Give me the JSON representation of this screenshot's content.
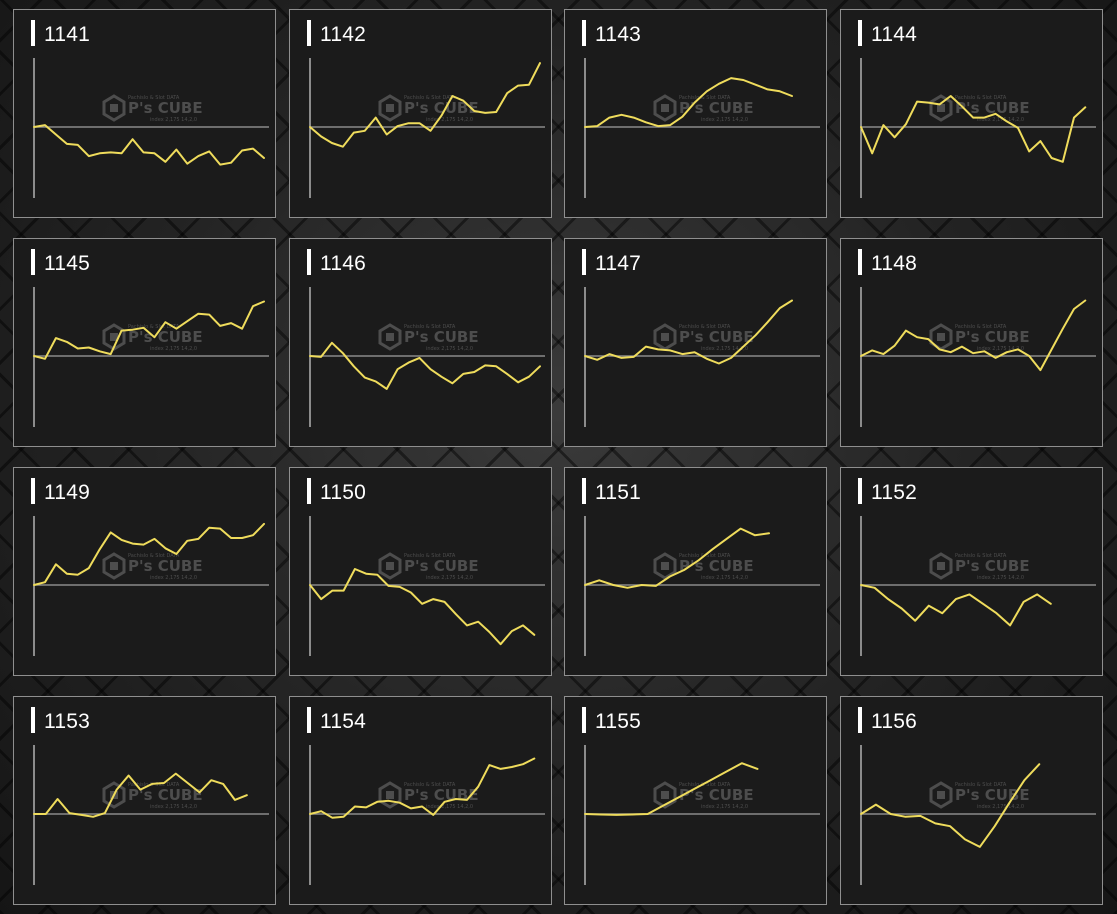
{
  "watermark": {
    "brand": "P's CUBE",
    "line1": "Pachislo & Slot DATA",
    "line2": "index 2,175 14,2,0"
  },
  "colors": {
    "line": "#efdc5c",
    "baseline": "#8a8a8a",
    "axis": "#d8d8d8",
    "panel_bg": "#1b1b1b",
    "panel_border": "#8f8f8f",
    "title": "#ffffff"
  },
  "chart_data": [
    {
      "type": "line",
      "title": "1141",
      "y": [
        0,
        2,
        -8,
        -18,
        -19,
        -31,
        -28,
        -27,
        -28,
        -13,
        -27,
        -28,
        -37,
        -24,
        -39,
        -31,
        -26,
        -40,
        -38,
        -25,
        -23,
        -33
      ]
    },
    {
      "type": "line",
      "title": "1142",
      "y": [
        0,
        -10,
        -17,
        -21,
        -6,
        -4,
        10,
        -8,
        1,
        4,
        4,
        -4,
        12,
        33,
        28,
        17,
        15,
        16,
        36,
        44,
        45,
        68
      ]
    },
    {
      "type": "line",
      "title": "1143",
      "y": [
        0,
        1,
        10,
        13,
        10,
        5,
        1,
        2,
        11,
        26,
        38,
        46,
        52,
        50,
        45,
        40,
        38,
        33
      ]
    },
    {
      "type": "line",
      "title": "1144",
      "y": [
        0,
        -28,
        2,
        -11,
        3,
        27,
        26,
        24,
        33,
        22,
        10,
        10,
        14,
        6,
        -1,
        -26,
        -15,
        -33,
        -37,
        10,
        21
      ]
    },
    {
      "type": "line",
      "title": "1145",
      "y": [
        0,
        -3,
        19,
        15,
        8,
        9,
        5,
        2,
        27,
        28,
        30,
        20,
        36,
        29,
        37,
        45,
        44,
        32,
        35,
        29,
        53,
        58
      ]
    },
    {
      "type": "line",
      "title": "1146",
      "y": [
        0,
        -1,
        14,
        3,
        -11,
        -23,
        -27,
        -35,
        -14,
        -7,
        -2,
        -14,
        -22,
        -29,
        -19,
        -17,
        -10,
        -11,
        -19,
        -28,
        -22,
        -11
      ]
    },
    {
      "type": "line",
      "title": "1147",
      "y": [
        0,
        -4,
        2,
        -2,
        -1,
        10,
        7,
        6,
        2,
        4,
        -3,
        -8,
        -2,
        10,
        22,
        36,
        51,
        59
      ]
    },
    {
      "type": "line",
      "title": "1148",
      "y": [
        0,
        6,
        2,
        11,
        27,
        20,
        18,
        7,
        4,
        10,
        3,
        5,
        -2,
        4,
        7,
        0,
        -15,
        7,
        29,
        50,
        59
      ]
    },
    {
      "type": "line",
      "title": "1149",
      "y": [
        0,
        3,
        22,
        12,
        11,
        18,
        38,
        56,
        48,
        44,
        43,
        49,
        39,
        33,
        47,
        49,
        61,
        60,
        50,
        50,
        53,
        65
      ]
    },
    {
      "type": "line",
      "title": "1150",
      "y": [
        0,
        -15,
        -6,
        -6,
        17,
        12,
        11,
        -1,
        -2,
        -8,
        -20,
        -15,
        -18,
        -31,
        -43,
        -39,
        -50,
        -63,
        -49,
        -43,
        -53
      ]
    },
    {
      "type": "line",
      "title": "1151",
      "y": [
        0,
        5,
        0,
        -3,
        0,
        -1,
        9,
        16,
        26,
        38,
        49,
        60,
        53,
        55
      ]
    },
    {
      "type": "line",
      "title": "1152",
      "y": [
        0,
        -3,
        -15,
        -25,
        -38,
        -22,
        -30,
        -15,
        -10,
        -20,
        -30,
        -43,
        -18,
        -10,
        -20
      ]
    },
    {
      "type": "line",
      "title": "1153",
      "y": [
        0,
        0,
        16,
        1,
        -1,
        -3,
        1,
        26,
        41,
        26,
        32,
        33,
        43,
        33,
        23,
        36,
        32,
        15,
        20
      ]
    },
    {
      "type": "line",
      "title": "1154",
      "y": [
        0,
        3,
        -4,
        -3,
        8,
        7,
        13,
        14,
        12,
        6,
        8,
        -1,
        13,
        16,
        15,
        29,
        52,
        48,
        50,
        53,
        59
      ]
    },
    {
      "type": "line",
      "title": "1155",
      "y": [
        0,
        -0.5,
        -1,
        -0.5,
        0,
        9,
        18,
        27,
        36,
        45,
        54,
        48
      ]
    },
    {
      "type": "line",
      "title": "1156",
      "y": [
        0,
        10,
        0,
        -3,
        -2,
        -10,
        -13,
        -27,
        -35,
        -13,
        12,
        36,
        53
      ]
    }
  ]
}
